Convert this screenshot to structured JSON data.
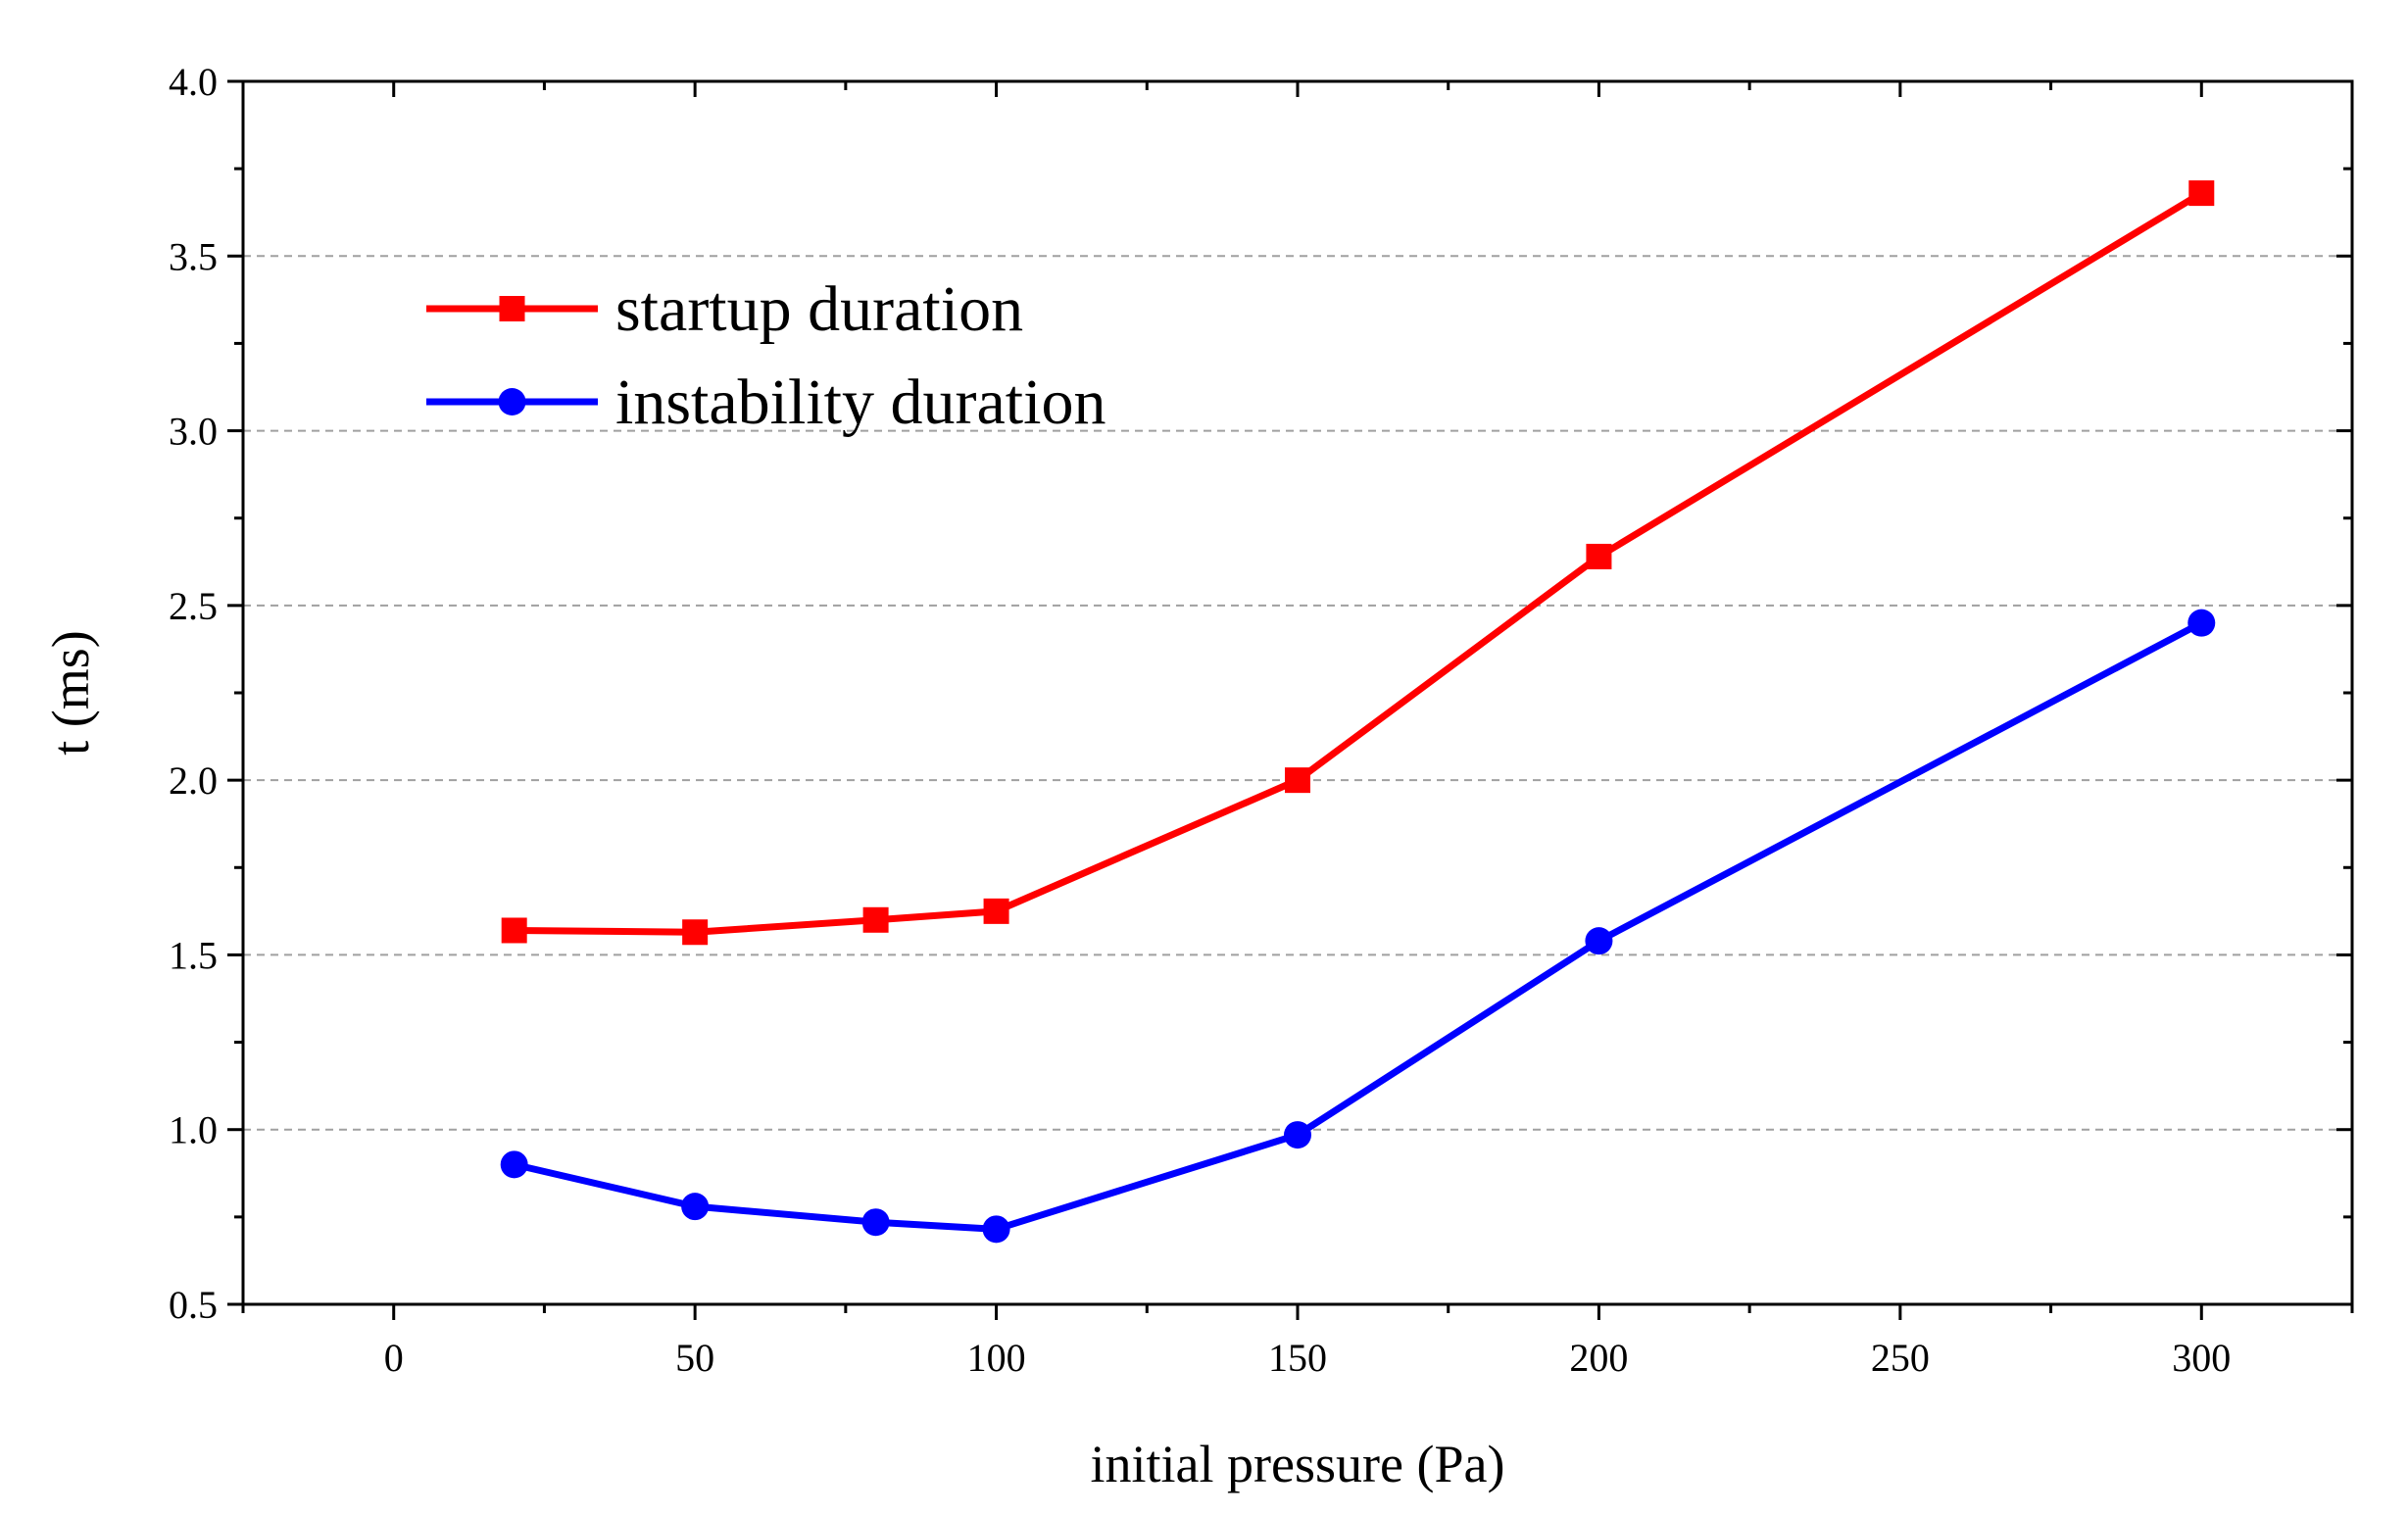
{
  "chart_data": {
    "type": "line",
    "title": "",
    "xlabel": "initial pressure (Pa)",
    "ylabel": "t (ms)",
    "xlim": [
      -25,
      325
    ],
    "ylim": [
      0.5,
      4.0
    ],
    "xticks": [
      0,
      50,
      100,
      150,
      200,
      250,
      300
    ],
    "xtick_labels": [
      "0",
      "50",
      "100",
      "150",
      "200",
      "250",
      "300"
    ],
    "yticks": [
      0.5,
      1.0,
      1.5,
      2.0,
      2.5,
      3.0,
      3.5,
      4.0
    ],
    "ytick_labels": [
      "0.5",
      "1.0",
      "1.5",
      "2.0",
      "2.5",
      "3.0",
      "3.5",
      "4.0"
    ],
    "grid": "horizontal dashed",
    "legend_position": "top-left",
    "series": [
      {
        "name": "startup duration",
        "color": "#ff0000",
        "marker": "square",
        "x": [
          20,
          50,
          80,
          100,
          150,
          200,
          300
        ],
        "y": [
          1.57,
          1.565,
          1.6,
          1.625,
          2.0,
          2.64,
          3.68
        ]
      },
      {
        "name": "instability duration",
        "color": "#0000ff",
        "marker": "circle",
        "x": [
          20,
          50,
          80,
          100,
          150,
          200,
          300
        ],
        "y": [
          0.9,
          0.78,
          0.735,
          0.715,
          0.985,
          1.54,
          2.45
        ]
      }
    ]
  }
}
